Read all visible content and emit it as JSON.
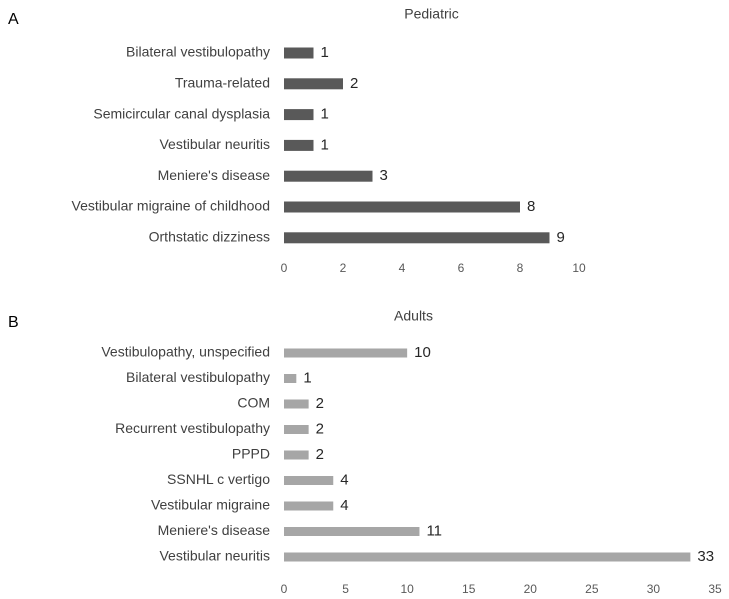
{
  "chart_data": [
    {
      "type": "hbar",
      "panel": "A",
      "title": "Pediatric",
      "categories": [
        "Bilateral vestibulopathy",
        "Trauma-related",
        "Semicircular canal dysplasia",
        "Vestibular neuritis",
        "Meniere's disease",
        "Vestibular migraine of childhood",
        "Orthstatic dizziness"
      ],
      "values": [
        1,
        2,
        1,
        1,
        3,
        8,
        9
      ],
      "color": "#595959",
      "xlim": [
        0,
        10
      ],
      "xticks": [
        0,
        2,
        4,
        6,
        8,
        10
      ]
    },
    {
      "type": "hbar",
      "panel": "B",
      "title": "Adults",
      "categories": [
        "Vestibulopathy, unspecified",
        "Bilateral vestibulopathy",
        "COM",
        "Recurrent vestibulopathy",
        "PPPD",
        "SSNHL c vertigo",
        "Vestibular migraine",
        "Meniere's disease",
        "Vestibular neuritis"
      ],
      "values": [
        10,
        1,
        2,
        2,
        2,
        4,
        4,
        11,
        33
      ],
      "color": "#a6a6a6",
      "xlim": [
        0,
        35
      ],
      "xticks": [
        0,
        5,
        10,
        15,
        20,
        25,
        30,
        35
      ]
    }
  ]
}
